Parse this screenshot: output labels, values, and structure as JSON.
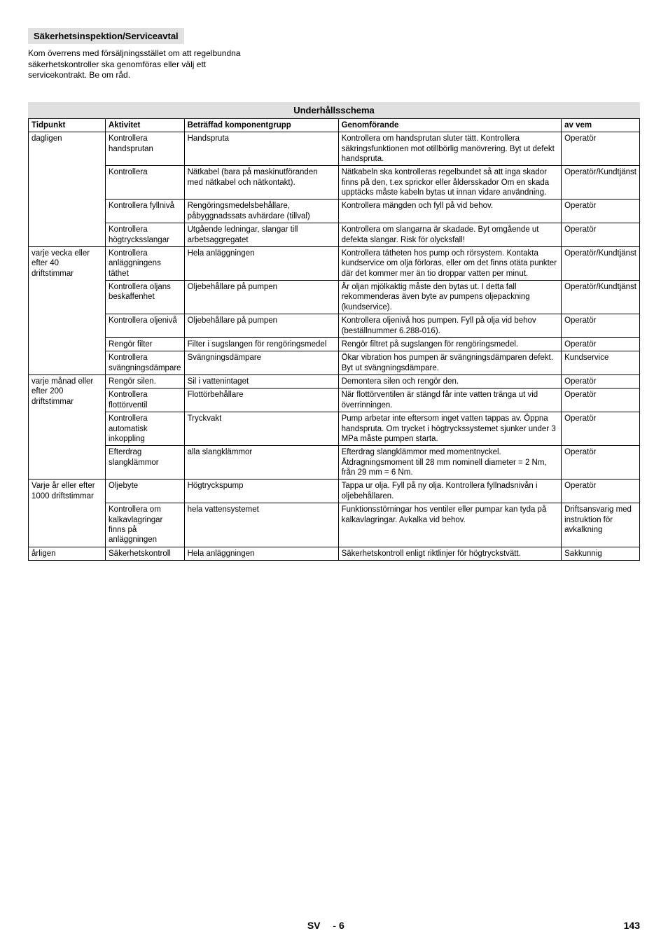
{
  "section_header": "Säkerhetsinspektion/Serviceavtal",
  "intro": "Kom överrens med försäljningsstället om att regelbundna säkerhetskontroller ska genomföras eller välj ett servicekontrakt. Be om råd.",
  "table_title": "Underhållsschema",
  "headers": {
    "time": "Tidpunkt",
    "activity": "Aktivitet",
    "component": "Beträffad komponentgrupp",
    "procedure": "Genomförande",
    "who": "av vem"
  },
  "rows": [
    {
      "time": "dagligen",
      "time_rowspan": 4,
      "activity": "Kontrollera handsprutan",
      "component": "Handspruta",
      "procedure": "Kontrollera om handsprutan sluter tätt. Kontrollera säkringsfunktionen mot otillbörlig manövrering. Byt ut defekt handspruta.",
      "who": "Operatör"
    },
    {
      "activity": "Kontrollera",
      "component": "Nätkabel (bara på maskinutföranden med nätkabel och nätkontakt).",
      "procedure": "Nätkabeln ska kontrolleras regelbundet så att inga skador finns på den, t.ex sprickor eller åldersskador Om en skada upptäcks måste kabeln bytas ut innan vidare användning.",
      "who": "Operatör/Kundtjänst"
    },
    {
      "activity": "Kontrollera fyllnivå",
      "component": "Rengöringsmedelsbehållare, påbyggnadssats avhärdare (tillval)",
      "procedure": "Kontrollera mängden och fyll på vid behov.",
      "who": "Operatör"
    },
    {
      "activity": "Kontrollera högtrycksslangar",
      "component": "Utgående ledningar, slangar till arbetsaggregatet",
      "procedure": "Kontrollera om slangarna är skadade. Byt omgående ut defekta slangar. Risk för olycksfall!",
      "who": "Operatör"
    },
    {
      "time": "varje vecka eller efter 40 driftstimmar",
      "time_rowspan": 5,
      "activity": "Kontrollera anläggningens täthet",
      "component": "Hela anläggningen",
      "procedure": "Kontrollera tätheten hos pump och rörsystem. Kontakta kundservice om olja förloras, eller om det finns otäta punkter där det kommer mer än tio droppar vatten per minut.",
      "who": "Operatör/Kundtjänst"
    },
    {
      "activity": "Kontrollera oljans beskaffenhet",
      "component": "Oljebehållare på pumpen",
      "procedure": "Är oljan mjölkaktig måste den bytas ut. I detta fall rekommenderas även byte av pumpens oljepackning (kundservice).",
      "who": "Operatör/Kundtjänst"
    },
    {
      "activity": "Kontrollera oljenivå",
      "component": "Oljebehållare på pumpen",
      "procedure": "Kontrollera oljenivå hos pumpen. Fyll på olja vid behov (beställnummer 6.288-016).",
      "who": "Operatör"
    },
    {
      "activity": "Rengör filter",
      "component": "Filter i sugslangen för rengöringsmedel",
      "procedure": "Rengör filtret på sugslangen för rengöringsmedel.",
      "who": "Operatör"
    },
    {
      "activity": "Kontrollera svängningsdämpare",
      "component": "Svängningsdämpare",
      "procedure": "Ökar vibration hos pumpen är svängningsdämparen defekt. Byt ut svängningsdämpare.",
      "who": "Kundservice"
    },
    {
      "time": "varje månad eller efter 200 driftstimmar",
      "time_rowspan": 4,
      "activity": "Rengör silen.",
      "component": "Sil i vattenintaget",
      "procedure": "Demontera silen och rengör den.",
      "who": "Operatör"
    },
    {
      "activity": "Kontrollera flottörventil",
      "component": "Flottörbehållare",
      "procedure": "När flottörventilen är stängd får inte vatten tränga ut vid överrinningen.",
      "who": "Operatör"
    },
    {
      "activity": "Kontrollera automatisk inkoppling",
      "component": "Tryckvakt",
      "procedure": "Pump arbetar inte eftersom inget vatten tappas av. Öppna handspruta. Om trycket i högtryckssystemet sjunker under 3 MPa måste pumpen starta.",
      "who": "Operatör"
    },
    {
      "activity": "Efterdrag slangklämmor",
      "component": "alla slangklämmor",
      "procedure": "Efterdrag slangklämmor med momentnyckel. Åtdragningsmoment till 28 mm nominell diameter = 2 Nm, från 29 mm = 6 Nm.",
      "who": "Operatör"
    },
    {
      "time": "Varje år eller efter 1000 driftstimmar",
      "time_rowspan": 2,
      "activity": "Oljebyte",
      "component": "Högtryckspump",
      "procedure": "Tappa ur olja. Fyll på ny olja. Kontrollera fyllnadsnivån i oljebehållaren.",
      "who": "Operatör"
    },
    {
      "activity": "Kontrollera om kalkavlagringar finns på anläggningen",
      "component": "hela vattensystemet",
      "procedure": "Funktionsstörningar hos ventiler eller pumpar kan tyda på kalkavlagringar. Avkalka vid behov.",
      "who": "Driftsansvarig med instruktion för avkalkning"
    },
    {
      "time": "årligen",
      "time_rowspan": 1,
      "activity": "Säkerhetskontroll",
      "component": "Hela anläggningen",
      "procedure": "Säkerhetskontroll enligt riktlinjer för högtryckstvätt.",
      "who": "Sakkunnig"
    }
  ],
  "footer": {
    "lang": "SV",
    "page_dash": "-",
    "page_local": "6",
    "page_global": "143"
  }
}
